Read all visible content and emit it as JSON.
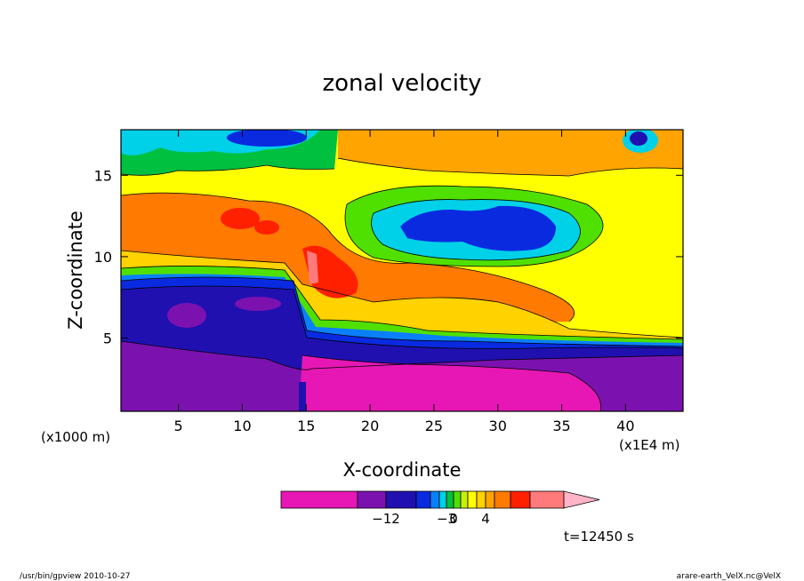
{
  "chart_data": {
    "type": "heatmap",
    "title": "zonal velocity",
    "xlabel": "X-coordinate",
    "ylabel": "Z-coordinate",
    "x_unit_left": "(x1000 m)",
    "x_unit_right": "(x1E4 m)",
    "xlim": [
      0.5,
      44.5
    ],
    "ylim": [
      0.5,
      17.8
    ],
    "x_ticks": [
      {
        "value": 5,
        "label": "5"
      },
      {
        "value": 10,
        "label": "10"
      },
      {
        "value": 15,
        "label": "15"
      },
      {
        "value": 20,
        "label": "20"
      },
      {
        "value": 25,
        "label": "25"
      },
      {
        "value": 30,
        "label": "30"
      },
      {
        "value": 35,
        "label": "35"
      },
      {
        "value": 40,
        "label": "40"
      }
    ],
    "y_ticks": [
      {
        "value": 5,
        "label": "5"
      },
      {
        "value": 10,
        "label": "10"
      },
      {
        "value": 15,
        "label": "15"
      }
    ],
    "colorbar": {
      "colors": [
        "#e617b4",
        "#7b12b0",
        "#2010b0",
        "#0a2ae0",
        "#0a80ff",
        "#00d0e8",
        "#00c040",
        "#50e000",
        "#c8f000",
        "#ffff00",
        "#ffd200",
        "#ffa400",
        "#ff7a00",
        "#ff2000",
        "#ff7a7a",
        "#ffb4c8"
      ],
      "labels": [
        {
          "after_index": 1,
          "text": "−12"
        },
        {
          "after_index": 5,
          "text": "−3"
        },
        {
          "after_index": 6,
          "text": "0"
        },
        {
          "after_index": 10,
          "text": "4"
        }
      ]
    },
    "annotation": "t=12450 s"
  },
  "footer": {
    "left": "/usr/bin/gpview   2010-10-27",
    "right": "arare-earth_VelX.nc@VelX"
  }
}
